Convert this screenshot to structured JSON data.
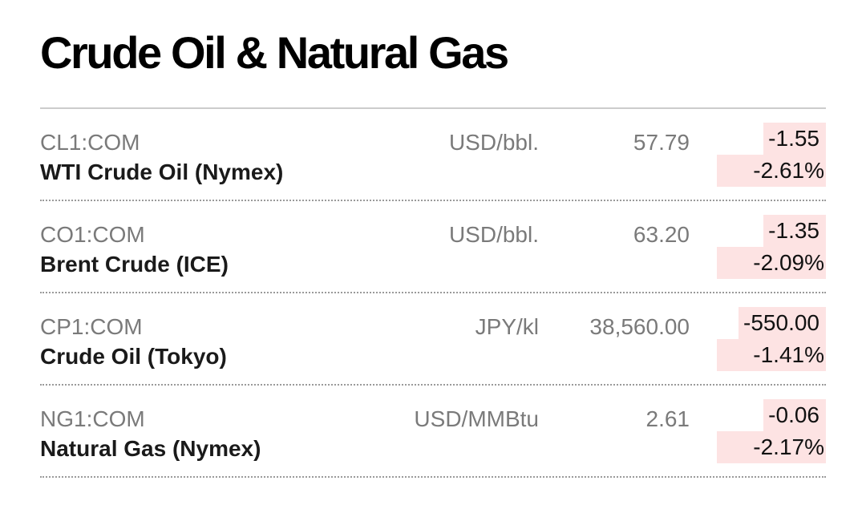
{
  "title": "Crude Oil & Natural Gas",
  "colors": {
    "negative_highlight": "#fde3e3",
    "ticker_text": "#7a7a7a",
    "name_text": "#1a1a1a"
  },
  "rows": [
    {
      "ticker": "CL1:COM",
      "name": "WTI Crude Oil (Nymex)",
      "unit": "USD/bbl.",
      "price": "57.79",
      "change": "-1.55",
      "change_pct": "-2.61%"
    },
    {
      "ticker": "CO1:COM",
      "name": "Brent Crude (ICE)",
      "unit": "USD/bbl.",
      "price": "63.20",
      "change": "-1.35",
      "change_pct": "-2.09%"
    },
    {
      "ticker": "CP1:COM",
      "name": "Crude Oil (Tokyo)",
      "unit": "JPY/kl",
      "price": "38,560.00",
      "change": "-550.00",
      "change_pct": "-1.41%"
    },
    {
      "ticker": "NG1:COM",
      "name": "Natural Gas (Nymex)",
      "unit": "USD/MMBtu",
      "price": "2.61",
      "change": "-0.06",
      "change_pct": "-2.17%"
    }
  ]
}
